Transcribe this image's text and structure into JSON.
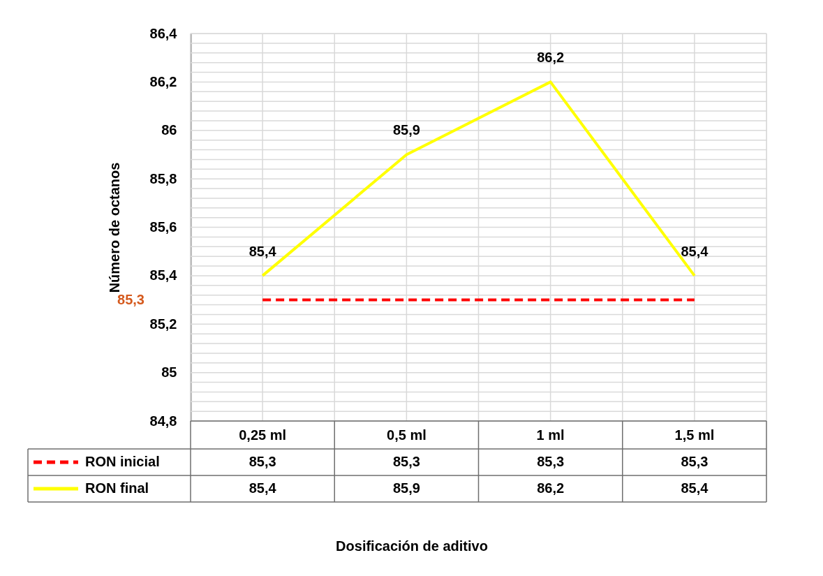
{
  "chart_data": {
    "type": "line",
    "categories": [
      "0,25 ml",
      "0,5 ml",
      "1  ml",
      "1,5 ml"
    ],
    "series": [
      {
        "name": "RON inicial",
        "color": "#ff0000",
        "line_style": "dashed",
        "values": [
          85.3,
          85.3,
          85.3,
          85.3
        ],
        "value_labels": [
          "85,3",
          "85,3",
          "85,3",
          "85,3"
        ]
      },
      {
        "name": "RON final",
        "color": "#ffff00",
        "line_style": "solid",
        "values": [
          85.4,
          85.9,
          86.2,
          85.4
        ],
        "value_labels": [
          "85,4",
          "85,9",
          "86,2",
          "85,4"
        ]
      }
    ],
    "ylabel": "Número de octanos",
    "ylim": [
      84.8,
      86.4
    ],
    "yticks": [
      {
        "value": 84.8,
        "label": "84,8"
      },
      85,
      {
        "value": 85.2,
        "label": "85,2"
      },
      {
        "value": 85.4,
        "label": "85,4"
      },
      {
        "value": 85.6,
        "label": "85,6"
      },
      {
        "value": 85.8,
        "label": "85,8"
      },
      86,
      {
        "value": 86.2,
        "label": "86,2"
      },
      {
        "value": 86.4,
        "label": "86,4"
      }
    ],
    "annotations": [
      "85,3",
      "Dosificación de aditivo"
    ],
    "grid": true,
    "legend": "bottom",
    "marker": "none"
  }
}
